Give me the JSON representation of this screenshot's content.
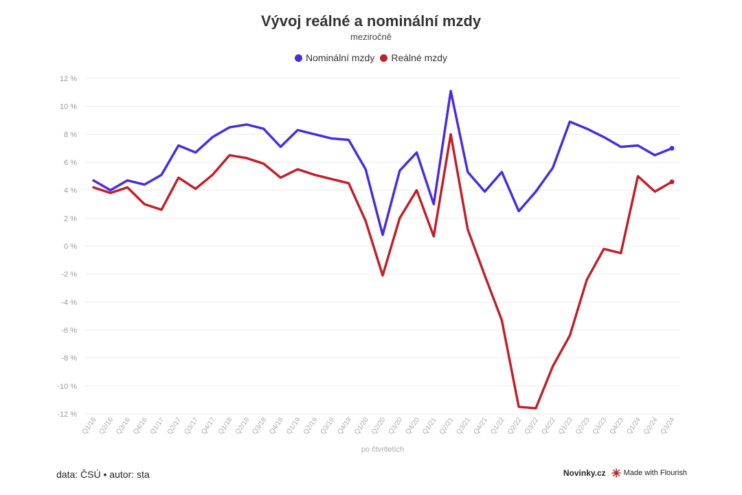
{
  "chart_data": {
    "type": "line",
    "title": "Vývoj reálné a nominální mzdy",
    "subtitle": "meziročně",
    "xlabel": "po čtvrtletích",
    "ylabel": "",
    "ylim": [
      -12,
      12
    ],
    "yticks": [
      12,
      10,
      8,
      6,
      4,
      2,
      0,
      -2,
      -4,
      -6,
      -8,
      -10,
      -12
    ],
    "ytick_labels": [
      "12 %",
      "10 %",
      "8 %",
      "6 %",
      "4 %",
      "2 %",
      "0 %",
      "-2 %",
      "-4 %",
      "-6 %",
      "-8 %",
      "-10 %",
      "-12 %"
    ],
    "grid": true,
    "legend_position": "top-center",
    "categories": [
      "Q1/16",
      "Q2/16",
      "Q3/16",
      "Q4/16",
      "Q1/17",
      "Q2/17",
      "Q3/17",
      "Q4/17",
      "Q1/18",
      "Q2/18",
      "Q3/18",
      "Q4/18",
      "Q1/19",
      "Q2/19",
      "Q3/19",
      "Q4/19",
      "Q1/20",
      "Q2/20",
      "Q3/20",
      "Q4/20",
      "Q1/21",
      "Q2/21",
      "Q3/21",
      "Q4/21",
      "Q1/22",
      "Q2/22",
      "Q3/22",
      "Q4/22",
      "Q1/23",
      "Q2/23",
      "Q3/23",
      "Q4/23",
      "Q1/24",
      "Q2/24",
      "Q3/24"
    ],
    "series": [
      {
        "name": "Nominální mzdy",
        "color": "#4a2be0",
        "values": [
          4.7,
          4.0,
          4.7,
          4.4,
          5.1,
          7.2,
          6.7,
          7.8,
          8.5,
          8.7,
          8.4,
          7.1,
          8.3,
          8.0,
          7.7,
          7.6,
          5.5,
          0.8,
          5.4,
          6.7,
          3.0,
          11.1,
          5.3,
          3.9,
          5.3,
          2.5,
          3.9,
          5.6,
          8.9,
          8.4,
          7.8,
          7.1,
          7.2,
          6.5,
          7.0
        ]
      },
      {
        "name": "Reálné mzdy",
        "color": "#c0202a",
        "values": [
          4.2,
          3.8,
          4.2,
          3.0,
          2.6,
          4.9,
          4.1,
          5.1,
          6.5,
          6.3,
          5.9,
          4.9,
          5.5,
          5.1,
          4.8,
          4.5,
          1.8,
          -2.1,
          2.0,
          4.0,
          0.7,
          8.0,
          1.2,
          -2.1,
          -5.3,
          -11.5,
          -11.6,
          -8.6,
          -6.4,
          -2.4,
          -0.2,
          -0.5,
          5.0,
          3.9,
          4.6
        ]
      }
    ]
  },
  "footer": {
    "source": "data: ČSÚ • autor: sta",
    "brand": "Novinky.cz",
    "flourish": "Made with Flourish"
  }
}
